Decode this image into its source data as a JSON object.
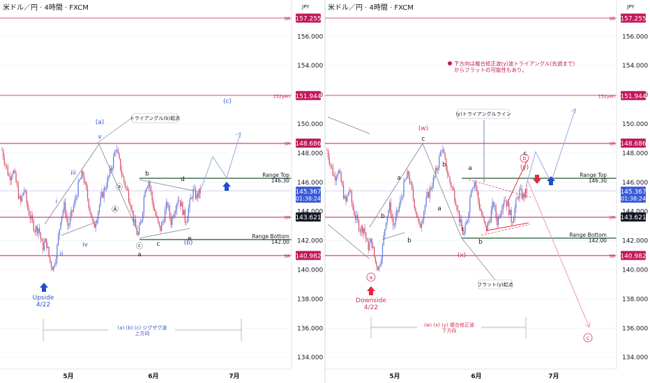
{
  "colors": {
    "up": "#5b6fd8",
    "down": "#d9445f",
    "sr_line": "#c2185b",
    "range_line": "#1e5631",
    "wave_blue": "#3355cc",
    "wave_red": "#d32f4f",
    "arrow_blue": "#1f4fc7",
    "arrow_red": "#e32a3a",
    "badge_pink": "#c2185b",
    "badge_dark": "#131722",
    "badge_price": "#3a5bd8",
    "grid": "#f0f0f3"
  },
  "panels": [
    {
      "title": "米ドル／円 · 4時間 · FXCM",
      "currency": "JPY",
      "y_ticks": [
        "156.000",
        "154.000",
        "152.000",
        "150.000",
        "148.000",
        "146.000",
        "144.000",
        "142.000",
        "140.000",
        "138.000",
        "136.000",
        "134.000"
      ],
      "x_ticks": [
        "5月",
        "6月",
        "7月"
      ],
      "levels": [
        {
          "label": "SR",
          "value": "157.255"
        },
        {
          "label": "152yen",
          "value": "151.944"
        },
        {
          "label": "SR",
          "value": "148.686"
        },
        {
          "label": "SR",
          "value": "143.621"
        },
        {
          "label": "SR",
          "value": "140.982"
        }
      ],
      "current_price": "145.367",
      "countdown": "01:38:24",
      "range_top": {
        "label": "Range Top",
        "value": "146.30"
      },
      "range_bottom": {
        "label": "Range Bottom",
        "value": "142.00"
      },
      "wave_labels": {
        "a_top": "(a)",
        "v": "v",
        "iii": "iii",
        "i": "i",
        "ii": "ii",
        "iv": "iv",
        "c_paren": "(c)",
        "b_paren": "(b)",
        "b": "b",
        "d": "d",
        "a": "a",
        "c": "c",
        "e": "e",
        "circ_a": "ⓐ",
        "circ_A": "Ⓐ",
        "circ_c": "ⓒ"
      },
      "triangle_note": "トライアングル(b)起点",
      "signal": {
        "line1": "Upside",
        "line2": "4/22"
      },
      "bracket": {
        "line1": "(a) (b) (c)  ジグザグ波",
        "line2": "上方向"
      }
    },
    {
      "title": "米ドル／円 · 4時間 · FXCM",
      "currency": "JPY",
      "y_ticks": [
        "156.000",
        "154.000",
        "152.000",
        "150.000",
        "148.000",
        "146.000",
        "144.000",
        "142.000",
        "140.000",
        "138.000",
        "136.000",
        "134.000"
      ],
      "x_ticks": [
        "5月",
        "6月",
        "7月"
      ],
      "levels": [
        {
          "label": "SR",
          "value": "157.255"
        },
        {
          "label": "152yen",
          "value": "151.944"
        },
        {
          "label": "SR",
          "value": "148.686"
        },
        {
          "label": "SR",
          "value": "143.621"
        },
        {
          "label": "SR",
          "value": "140.982"
        }
      ],
      "current_price": "145.367",
      "countdown": "01:38:24",
      "range_top": {
        "label": "Range Top",
        "value": "146.30"
      },
      "range_bottom": {
        "label": "Range Bottom",
        "value": "142.00"
      },
      "wave_labels": {
        "w": "(w)",
        "x": "(x)",
        "y": "(y)",
        "circ_a": "ⓐ",
        "circ_b": "ⓑ",
        "circ_c": "ⓒ",
        "c1": "c",
        "a1": "a",
        "b1": "b",
        "b2": "b",
        "a2": "a",
        "c2": "c",
        "a3": "a",
        "b3": "b",
        "c3": "c"
      },
      "note": {
        "line1": "下方向は複合修正波(y)波トライアングル(先週まで)",
        "line2": "からフラットの可能性もあり。"
      },
      "triangle_note": "(y)トライアングルライン",
      "flat_note": "フラット(y)起点",
      "signal": {
        "line1": "Downside",
        "line2": "4/22"
      },
      "bracket": {
        "line1": "(w) (x) (y)  複合修正波",
        "line2": "下方向"
      }
    }
  ],
  "chart_data": [
    {
      "type": "candlestick",
      "title": "米ドル／円 · 4時間 · FXCM",
      "ylabel": "JPY",
      "ylim": [
        133.3,
        158.2
      ],
      "x_ticks": [
        "5月",
        "6月",
        "7月"
      ],
      "close_path": [
        148.2,
        147.2,
        146.3,
        146.9,
        145.8,
        144.5,
        145.6,
        144.2,
        143.4,
        142.8,
        142.9,
        141.5,
        142.0,
        140.6,
        140.1,
        141.5,
        143.6,
        144.4,
        142.9,
        143.9,
        144.8,
        146.0,
        146.6,
        145.3,
        144.1,
        142.8,
        143.9,
        144.9,
        145.6,
        146.3,
        147.2,
        148.4,
        147.3,
        146.2,
        145.5,
        144.6,
        143.2,
        142.3,
        143.5,
        145.7,
        146.1,
        144.6,
        143.6,
        142.7,
        143.5,
        144.6,
        143.3,
        144.2,
        145.0,
        144.3,
        143.3,
        144.4,
        145.4,
        145.0,
        145.37
      ],
      "levels": [
        157.255,
        151.944,
        148.686,
        143.621,
        140.982
      ],
      "range_top": 146.3,
      "range_bottom": 142.0,
      "last_price": 145.367
    },
    {
      "type": "candlestick",
      "title": "米ドル／円 · 4時間 · FXCM",
      "ylabel": "JPY",
      "ylim": [
        133.3,
        158.2
      ],
      "x_ticks": [
        "5月",
        "6月",
        "7月"
      ],
      "close_path": [
        148.2,
        147.2,
        146.3,
        146.9,
        145.8,
        144.5,
        145.6,
        144.2,
        143.4,
        142.8,
        142.9,
        141.5,
        142.0,
        140.6,
        140.1,
        141.5,
        143.6,
        144.4,
        142.9,
        143.9,
        144.8,
        146.0,
        146.6,
        145.3,
        144.1,
        142.8,
        143.9,
        144.9,
        145.6,
        146.3,
        147.2,
        148.4,
        147.3,
        146.2,
        145.5,
        144.6,
        143.2,
        142.3,
        143.5,
        145.7,
        146.1,
        144.6,
        143.6,
        142.7,
        143.5,
        144.6,
        143.3,
        144.2,
        145.0,
        144.3,
        143.3,
        144.4,
        145.4,
        145.0,
        145.37
      ],
      "levels": [
        157.255,
        151.944,
        148.686,
        143.621,
        140.982
      ],
      "range_top": 146.3,
      "range_bottom": 142.0,
      "last_price": 145.367
    }
  ]
}
